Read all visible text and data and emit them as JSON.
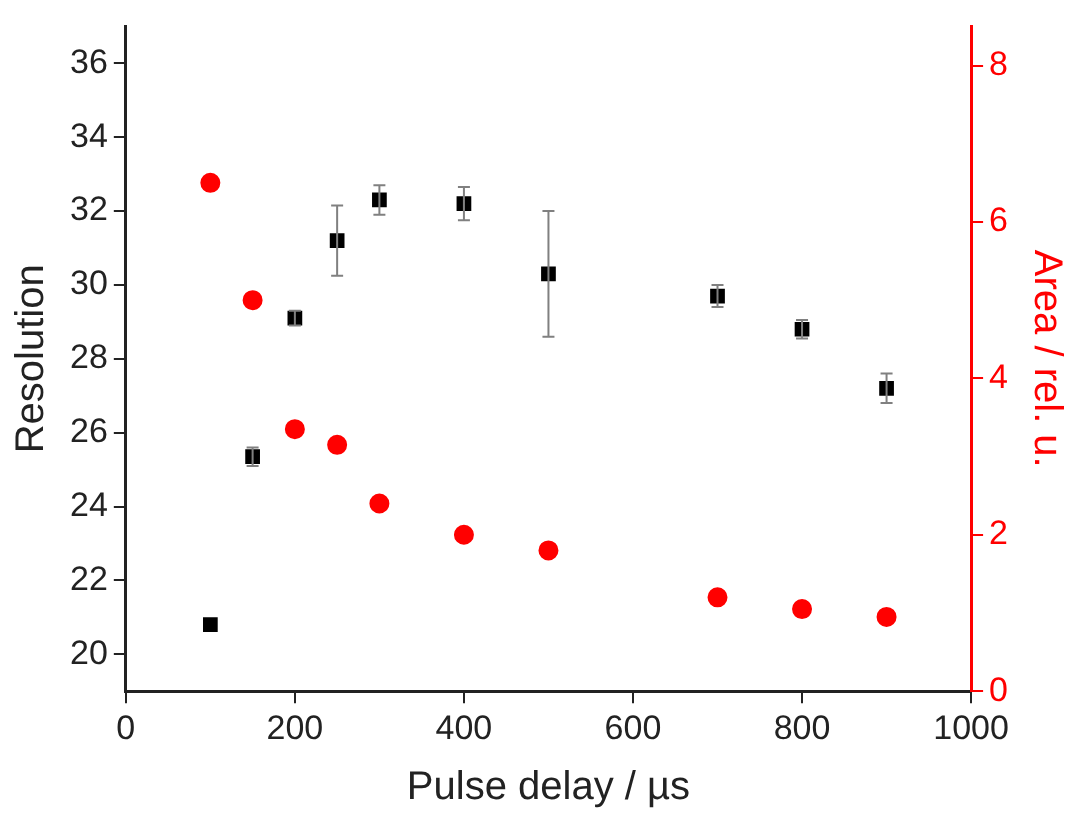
{
  "chart_data": {
    "type": "scatter",
    "xlabel": "Pulse delay / µs",
    "ylabel": "Resolution",
    "y2label": "Area / rel. u.",
    "x": [
      100,
      150,
      200,
      250,
      300,
      400,
      500,
      700,
      800,
      900
    ],
    "series": [
      {
        "color": "#000000",
        "marker": "square",
        "values": [
          20.8,
          25.35,
          29.1,
          31.2,
          32.3,
          32.2,
          30.3,
          29.7,
          28.8,
          27.2
        ],
        "errors": [
          null,
          0.25,
          0.2,
          0.95,
          0.4,
          0.45,
          1.7,
          0.3,
          0.25,
          0.4
        ]
      },
      {
        "color": "#ff0000",
        "marker": "circle",
        "axis": "y2",
        "values": [
          6.5,
          5.0,
          3.35,
          3.15,
          2.4,
          2.0,
          1.8,
          1.2,
          1.05,
          0.95
        ]
      }
    ],
    "xlim": [
      0,
      1000
    ],
    "xticks": [
      0,
      200,
      400,
      600,
      800,
      1000
    ],
    "ylim": [
      19,
      37
    ],
    "yticks": [
      20,
      22,
      24,
      26,
      28,
      30,
      32,
      34,
      36
    ],
    "y2lim": [
      0,
      8.5
    ],
    "y2ticks": [
      0,
      2,
      4,
      6,
      8
    ],
    "grid": false,
    "legend": false
  }
}
